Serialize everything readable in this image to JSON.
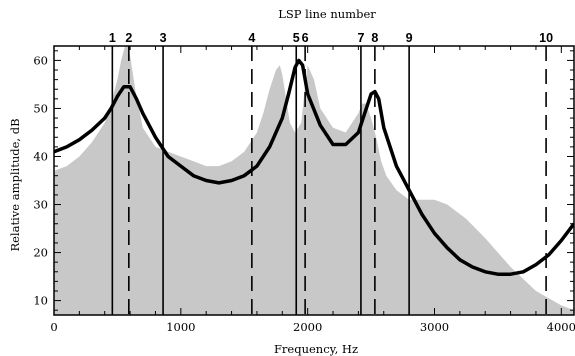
{
  "chart_data": {
    "type": "area",
    "title": "LSP line number",
    "xlabel": "Frequency, Hz",
    "ylabel": "Relative amplitude, dB",
    "xlim": [
      0,
      4100
    ],
    "ylim": [
      7,
      63
    ],
    "x_ticks": [
      0,
      1000,
      2000,
      3000,
      4000
    ],
    "y_ticks": [
      10,
      20,
      30,
      40,
      50,
      60
    ],
    "grid": false,
    "colors": {
      "spectrum_fill": "#c8c8c8",
      "envelope": "#000000",
      "lines": "#000000",
      "axes": "#000000"
    },
    "spectrum": {
      "x": [
        0,
        100,
        200,
        300,
        400,
        450,
        500,
        530,
        560,
        580,
        600,
        640,
        700,
        800,
        900,
        1000,
        1100,
        1200,
        1300,
        1400,
        1500,
        1600,
        1650,
        1700,
        1750,
        1780,
        1800,
        1830,
        1860,
        1900,
        1950,
        1980,
        2000,
        2050,
        2100,
        2200,
        2300,
        2350,
        2400,
        2430,
        2460,
        2500,
        2540,
        2580,
        2620,
        2700,
        2800,
        2900,
        3000,
        3100,
        3150,
        3250,
        3400,
        3600,
        3800,
        4000,
        4100
      ],
      "y": [
        37,
        38,
        40,
        43,
        47,
        51,
        56,
        60,
        63,
        63,
        61,
        54,
        46,
        42,
        41,
        40,
        39,
        38,
        38,
        39,
        41,
        45,
        49,
        54,
        58,
        59,
        57,
        52,
        47,
        45,
        47,
        55,
        59,
        56,
        50,
        46,
        45,
        47,
        49,
        51,
        51,
        48,
        44,
        39,
        36,
        33,
        31,
        31,
        31,
        30,
        29,
        27,
        23,
        17,
        12,
        9,
        8
      ]
    },
    "envelope": {
      "x": [
        0,
        100,
        200,
        300,
        400,
        450,
        500,
        550,
        600,
        650,
        700,
        800,
        900,
        1000,
        1100,
        1200,
        1300,
        1400,
        1500,
        1600,
        1700,
        1800,
        1850,
        1900,
        1930,
        1960,
        2000,
        2100,
        2200,
        2300,
        2400,
        2450,
        2500,
        2530,
        2560,
        2600,
        2700,
        2800,
        2900,
        3000,
        3100,
        3200,
        3300,
        3400,
        3500,
        3600,
        3700,
        3800,
        3900,
        4000,
        4100
      ],
      "y": [
        41,
        42,
        43.5,
        45.5,
        48,
        50,
        52.5,
        54.5,
        54.5,
        52,
        49,
        44,
        40,
        38,
        36,
        35,
        34.5,
        35,
        36,
        38,
        42,
        48,
        53,
        58.5,
        60,
        59,
        53,
        46.5,
        42.5,
        42.5,
        45,
        49,
        53,
        53.5,
        52,
        46,
        38,
        33,
        28,
        24,
        21,
        18.5,
        17,
        16,
        15.5,
        15.5,
        16,
        17.5,
        19.5,
        22.5,
        26
      ]
    },
    "lsp_lines": [
      {
        "number": "1",
        "frequency": 460,
        "style": "solid"
      },
      {
        "number": "2",
        "frequency": 590,
        "style": "dashed"
      },
      {
        "number": "3",
        "frequency": 860,
        "style": "solid"
      },
      {
        "number": "4",
        "frequency": 1560,
        "style": "dashed"
      },
      {
        "number": "5",
        "frequency": 1910,
        "style": "solid"
      },
      {
        "number": "6",
        "frequency": 1980,
        "style": "dashed"
      },
      {
        "number": "7",
        "frequency": 2420,
        "style": "solid"
      },
      {
        "number": "8",
        "frequency": 2530,
        "style": "dashed"
      },
      {
        "number": "9",
        "frequency": 2800,
        "style": "solid"
      },
      {
        "number": "10",
        "frequency": 3880,
        "style": "dashed"
      }
    ]
  }
}
